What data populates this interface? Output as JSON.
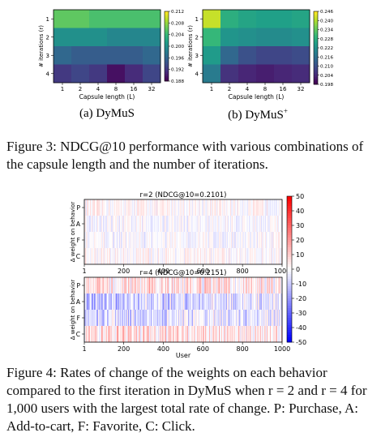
{
  "fig3": {
    "panel_a": {
      "ylabel": "# iterations (r)",
      "xlabel": "Capsule length (L)",
      "xticks": [
        "1",
        "2",
        "4",
        "8",
        "16",
        "32"
      ],
      "yticks": [
        "1",
        "2",
        "3",
        "4"
      ],
      "cbar_ticks": [
        "0.212",
        "0.208",
        "0.204",
        "0.200",
        "0.196",
        "0.192",
        "0.188"
      ],
      "caption": "(a) DyMuS"
    },
    "panel_b": {
      "ylabel": "# iterations (r)",
      "xlabel": "Capsule length (L)",
      "xticks": [
        "1",
        "2",
        "4",
        "8",
        "16",
        "32"
      ],
      "yticks": [
        "1",
        "2",
        "3",
        "4"
      ],
      "cbar_ticks": [
        "0.246",
        "0.240",
        "0.234",
        "0.228",
        "0.222",
        "0.216",
        "0.210",
        "0.204",
        "0.198"
      ],
      "caption_main": "(b) DyMuS",
      "caption_sup": "+"
    },
    "caption": "Figure 3: NDCG@10 performance with various combinations of the capsule length and the number of iterations."
  },
  "fig4": {
    "top_title": "r=2 (NDCG@10=0.2101)",
    "bottom_title": "r=4 (NDCG@10=0.2151)",
    "ylabel": "Δ weight on behavior",
    "yticks": [
      "P",
      "A",
      "F",
      "C"
    ],
    "xticks": [
      "1",
      "200",
      "400",
      "600",
      "800",
      "1000"
    ],
    "xlabel": "User",
    "cbar_ticks": [
      "50",
      "40",
      "30",
      "20",
      "10",
      "0",
      "-10",
      "-20",
      "-30",
      "-40",
      "-50"
    ],
    "caption": "Figure 4: Rates of change of the weights on each behavior compared to the first iteration in DyMuS when r = 2 and r = 4 for 1,000 users with the largest total rate of change. P: Purchase, A: Add-to-cart, F: Favorite, C: Click."
  },
  "chart_data": [
    {
      "type": "heatmap",
      "title": "",
      "xlabel": "Capsule length (L)",
      "ylabel": "# iterations (r)",
      "x": [
        "1",
        "2",
        "4",
        "8",
        "16",
        "32"
      ],
      "y": [
        "1",
        "2",
        "3",
        "4"
      ],
      "values": [
        [
          0.206,
          0.206,
          0.205,
          0.205,
          0.205,
          0.205
        ],
        [
          0.2,
          0.2,
          0.2,
          0.199,
          0.199,
          0.199
        ],
        [
          0.196,
          0.195,
          0.195,
          0.195,
          0.195,
          0.196
        ],
        [
          0.192,
          0.193,
          0.192,
          0.189,
          0.191,
          0.193
        ]
      ],
      "colorbar": [
        0.188,
        0.212
      ],
      "colormap": "viridis"
    },
    {
      "type": "heatmap",
      "title": "",
      "xlabel": "Capsule length (L)",
      "ylabel": "# iterations (r)",
      "x": [
        "1",
        "2",
        "4",
        "8",
        "16",
        "32"
      ],
      "y": [
        "1",
        "2",
        "3",
        "4"
      ],
      "values": [
        [
          0.242,
          0.228,
          0.226,
          0.225,
          0.225,
          0.226
        ],
        [
          0.23,
          0.223,
          0.222,
          0.221,
          0.221,
          0.222
        ],
        [
          0.224,
          0.214,
          0.21,
          0.208,
          0.208,
          0.209
        ],
        [
          0.218,
          0.205,
          0.203,
          0.202,
          0.203,
          0.204
        ]
      ],
      "colorbar": [
        0.198,
        0.246
      ],
      "colormap": "viridis"
    }
  ]
}
